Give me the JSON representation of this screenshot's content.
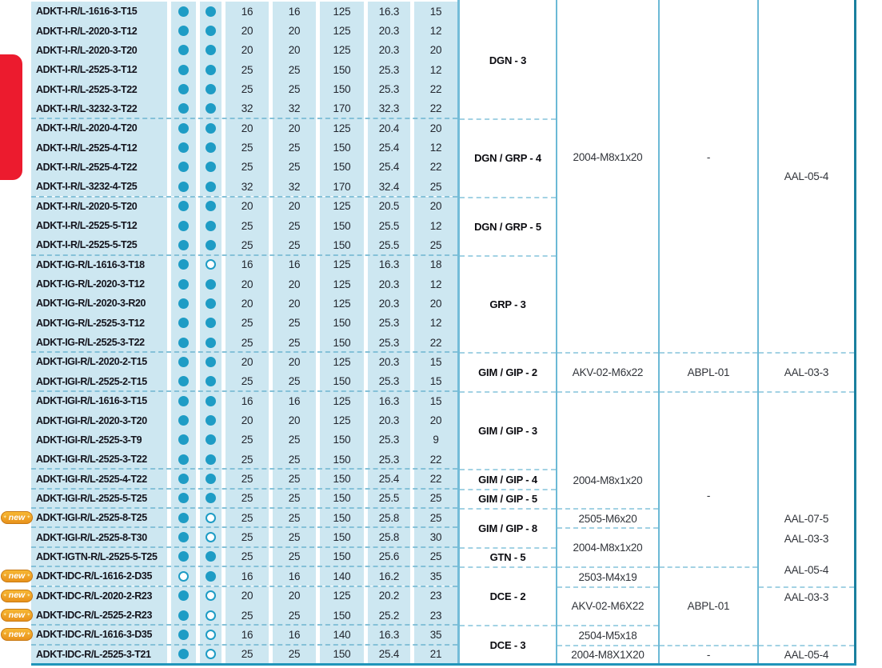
{
  "palette": {
    "dot_teal": "#1E9CC5",
    "row_background": "#CDE7F1",
    "red_tab": "#EC1B2E",
    "badge_orange": "#F0A31F",
    "table_border_teal": "#1A7F9E",
    "bottom_border_teal": "#2095BA"
  },
  "badge_label": "new",
  "rows": [
    {
      "name": "ADKT-I-R/L-1616-3-T15",
      "dots": [
        "filled",
        "filled"
      ],
      "values": [
        "16",
        "16",
        "125",
        "16.3",
        "15"
      ],
      "new": false,
      "sep": false
    },
    {
      "name": "ADKT-I-R/L-2020-3-T12",
      "dots": [
        "filled",
        "filled"
      ],
      "values": [
        "20",
        "20",
        "125",
        "20.3",
        "12"
      ],
      "new": false,
      "sep": false
    },
    {
      "name": "ADKT-I-R/L-2020-3-T20",
      "dots": [
        "filled",
        "filled"
      ],
      "values": [
        "20",
        "20",
        "125",
        "20.3",
        "20"
      ],
      "new": false,
      "sep": false
    },
    {
      "name": "ADKT-I-R/L-2525-3-T12",
      "dots": [
        "filled",
        "filled"
      ],
      "values": [
        "25",
        "25",
        "150",
        "25.3",
        "12"
      ],
      "new": false,
      "sep": false
    },
    {
      "name": "ADKT-I-R/L-2525-3-T22",
      "dots": [
        "filled",
        "filled"
      ],
      "values": [
        "25",
        "25",
        "150",
        "25.3",
        "22"
      ],
      "new": false,
      "sep": false
    },
    {
      "name": "ADKT-I-R/L-3232-3-T22",
      "dots": [
        "filled",
        "filled"
      ],
      "values": [
        "32",
        "32",
        "170",
        "32.3",
        "22"
      ],
      "new": false,
      "sep": false
    },
    {
      "name": "ADKT-I-R/L-2020-4-T20",
      "dots": [
        "filled",
        "filled"
      ],
      "values": [
        "20",
        "20",
        "125",
        "20.4",
        "20"
      ],
      "new": false,
      "sep": true
    },
    {
      "name": "ADKT-I-R/L-2525-4-T12",
      "dots": [
        "filled",
        "filled"
      ],
      "values": [
        "25",
        "25",
        "150",
        "25.4",
        "12"
      ],
      "new": false,
      "sep": false
    },
    {
      "name": "ADKT-I-R/L-2525-4-T22",
      "dots": [
        "filled",
        "filled"
      ],
      "values": [
        "25",
        "25",
        "150",
        "25.4",
        "22"
      ],
      "new": false,
      "sep": false
    },
    {
      "name": "ADKT-I-R/L-3232-4-T25",
      "dots": [
        "filled",
        "filled"
      ],
      "values": [
        "32",
        "32",
        "170",
        "32.4",
        "25"
      ],
      "new": false,
      "sep": false
    },
    {
      "name": "ADKT-I-R/L-2020-5-T20",
      "dots": [
        "filled",
        "filled"
      ],
      "values": [
        "20",
        "20",
        "125",
        "20.5",
        "20"
      ],
      "new": false,
      "sep": true
    },
    {
      "name": "ADKT-I-R/L-2525-5-T12",
      "dots": [
        "filled",
        "filled"
      ],
      "values": [
        "25",
        "25",
        "150",
        "25.5",
        "12"
      ],
      "new": false,
      "sep": false
    },
    {
      "name": "ADKT-I-R/L-2525-5-T25",
      "dots": [
        "filled",
        "filled"
      ],
      "values": [
        "25",
        "25",
        "150",
        "25.5",
        "25"
      ],
      "new": false,
      "sep": false
    },
    {
      "name": "ADKT-IG-R/L-1616-3-T18",
      "dots": [
        "filled",
        "open"
      ],
      "values": [
        "16",
        "16",
        "125",
        "16.3",
        "18"
      ],
      "new": false,
      "sep": true
    },
    {
      "name": "ADKT-IG-R/L-2020-3-T12",
      "dots": [
        "filled",
        "filled"
      ],
      "values": [
        "20",
        "20",
        "125",
        "20.3",
        "12"
      ],
      "new": false,
      "sep": false
    },
    {
      "name": "ADKT-IG-R/L-2020-3-R20",
      "dots": [
        "filled",
        "filled"
      ],
      "values": [
        "20",
        "20",
        "125",
        "20.3",
        "20"
      ],
      "new": false,
      "sep": false
    },
    {
      "name": "ADKT-IG-R/L-2525-3-T12",
      "dots": [
        "filled",
        "filled"
      ],
      "values": [
        "25",
        "25",
        "150",
        "25.3",
        "12"
      ],
      "new": false,
      "sep": false
    },
    {
      "name": "ADKT-IG-R/L-2525-3-T22",
      "dots": [
        "filled",
        "filled"
      ],
      "values": [
        "25",
        "25",
        "150",
        "25.3",
        "22"
      ],
      "new": false,
      "sep": false
    },
    {
      "name": "ADKT-IGI-R/L-2020-2-T15",
      "dots": [
        "filled",
        "filled"
      ],
      "values": [
        "20",
        "20",
        "125",
        "20.3",
        "15"
      ],
      "new": false,
      "sep": true
    },
    {
      "name": "ADKT-IGI-R/L-2525-2-T15",
      "dots": [
        "filled",
        "filled"
      ],
      "values": [
        "25",
        "25",
        "150",
        "25.3",
        "15"
      ],
      "new": false,
      "sep": false
    },
    {
      "name": "ADKT-IGI-R/L-1616-3-T15",
      "dots": [
        "filled",
        "filled"
      ],
      "values": [
        "16",
        "16",
        "125",
        "16.3",
        "15"
      ],
      "new": false,
      "sep": true
    },
    {
      "name": "ADKT-IGI-R/L-2020-3-T20",
      "dots": [
        "filled",
        "filled"
      ],
      "values": [
        "20",
        "20",
        "125",
        "20.3",
        "20"
      ],
      "new": false,
      "sep": false
    },
    {
      "name": "ADKT-IGI-R/L-2525-3-T9",
      "dots": [
        "filled",
        "filled"
      ],
      "values": [
        "25",
        "25",
        "150",
        "25.3",
        "9"
      ],
      "new": false,
      "sep": false
    },
    {
      "name": "ADKT-IGI-R/L-2525-3-T22",
      "dots": [
        "filled",
        "filled"
      ],
      "values": [
        "25",
        "25",
        "150",
        "25.3",
        "22"
      ],
      "new": false,
      "sep": false
    },
    {
      "name": "ADKT-IGI-R/L-2525-4-T22",
      "dots": [
        "filled",
        "filled"
      ],
      "values": [
        "25",
        "25",
        "150",
        "25.4",
        "22"
      ],
      "new": false,
      "sep": true
    },
    {
      "name": "ADKT-IGI-R/L-2525-5-T25",
      "dots": [
        "filled",
        "filled"
      ],
      "values": [
        "25",
        "25",
        "150",
        "25.5",
        "25"
      ],
      "new": false,
      "sep": true
    },
    {
      "name": "ADKT-IGI-R/L-2525-8-T25",
      "dots": [
        "filled",
        "open"
      ],
      "values": [
        "25",
        "25",
        "150",
        "25.8",
        "25"
      ],
      "new": true,
      "sep": true
    },
    {
      "name": "ADKT-IGI-R/L-2525-8-T30",
      "dots": [
        "filled",
        "open"
      ],
      "values": [
        "25",
        "25",
        "150",
        "25.8",
        "30"
      ],
      "new": false,
      "sep": true
    },
    {
      "name": "ADKT-IGTN-R/L-2525-5-T25",
      "dots": [
        "filled",
        "filled"
      ],
      "values": [
        "25",
        "25",
        "150",
        "25.6",
        "25"
      ],
      "new": false,
      "sep": true
    },
    {
      "name": "ADKT-IDC-R/L-1616-2-D35",
      "dots": [
        "open",
        "filled"
      ],
      "values": [
        "16",
        "16",
        "140",
        "16.2",
        "35"
      ],
      "new": true,
      "sep": true
    },
    {
      "name": "ADKT-IDC-R/L-2020-2-R23",
      "dots": [
        "filled",
        "open"
      ],
      "values": [
        "20",
        "20",
        "125",
        "20.2",
        "23"
      ],
      "new": true,
      "sep": true
    },
    {
      "name": "ADKT-IDC-R/L-2525-2-R23",
      "dots": [
        "filled",
        "open"
      ],
      "values": [
        "25",
        "25",
        "150",
        "25.2",
        "23"
      ],
      "new": true,
      "sep": false
    },
    {
      "name": "ADKT-IDC-R/L-1616-3-D35",
      "dots": [
        "filled",
        "open"
      ],
      "values": [
        "16",
        "16",
        "140",
        "16.3",
        "35"
      ],
      "new": true,
      "sep": true
    },
    {
      "name": "ADKT-IDC-R/L-2525-3-T21",
      "dots": [
        "filled",
        "open"
      ],
      "values": [
        "25",
        "25",
        "150",
        "25.4",
        "21"
      ],
      "new": false,
      "sep": true
    }
  ],
  "group_column": [
    {
      "label": "DGN - 3",
      "row_start": 1,
      "row_end": 6
    },
    {
      "label": "DGN / GRP - 4",
      "row_start": 7,
      "row_end": 10
    },
    {
      "label": "DGN / GRP - 5",
      "row_start": 11,
      "row_end": 13
    },
    {
      "label": "GRP - 3",
      "row_start": 14,
      "row_end": 18
    },
    {
      "label": "GIM / GIP - 2",
      "row_start": 19,
      "row_end": 20
    },
    {
      "label": "GIM / GIP - 3",
      "row_start": 21,
      "row_end": 24
    },
    {
      "label": "GIM / GIP - 4",
      "row_start": 25,
      "row_end": 25
    },
    {
      "label": "GIM / GIP - 5",
      "row_start": 26,
      "row_end": 26
    },
    {
      "label": "GIM / GIP - 8",
      "row_start": 27,
      "row_end": 28
    },
    {
      "label": "GTN - 5",
      "row_start": 29,
      "row_end": 29
    },
    {
      "label": "DCE - 2",
      "row_start": 30,
      "row_end": 32
    },
    {
      "label": "DCE - 3",
      "row_start": 33,
      "row_end": 34
    }
  ],
  "screw_column": [
    {
      "label": "2004-M8x1x20",
      "row_start": 1,
      "row_end": 18,
      "text_row": 8.5
    },
    {
      "label": "AKV-02-M6x22",
      "row_start": 19,
      "row_end": 20
    },
    {
      "label": "2004-M8x1x20",
      "row_start": 21,
      "row_end": 26,
      "text_row": 25
    },
    {
      "label": "2505-M6x20",
      "row_start": 27,
      "row_end": 27
    },
    {
      "label": "2004-M8x1x20",
      "row_start": 28,
      "row_end": 29
    },
    {
      "label": "2503-M4x19",
      "row_start": 30,
      "row_end": 30
    },
    {
      "label": "AKV-02-M6X22",
      "row_start": 31,
      "row_end": 32
    },
    {
      "label": "2504-M5x18",
      "row_start": 33,
      "row_end": 33
    },
    {
      "label": "2004-M8X1X20",
      "row_start": 34,
      "row_end": 34
    }
  ],
  "key_column": [
    {
      "label": "-",
      "row_start": 1,
      "row_end": 18,
      "text_row": 8.5
    },
    {
      "label": "ABPL-01",
      "row_start": 19,
      "row_end": 20
    },
    {
      "label": "-",
      "row_start": 21,
      "row_end": 29,
      "text_row": 25.8
    },
    {
      "label": "ABPL-01",
      "row_start": 30,
      "row_end": 33
    },
    {
      "label": "-",
      "row_start": 34,
      "row_end": 34
    }
  ],
  "anvil_column": [
    {
      "label": "AAL-05-4",
      "row_start": 1,
      "row_end": 18,
      "text_row": 9.5
    },
    {
      "label": "AAL-03-3",
      "row_start": 19,
      "row_end": 20
    },
    {
      "labels": [
        {
          "text": "AAL-07-5",
          "text_row": 27
        },
        {
          "text": "AAL-03-3",
          "text_row": 28
        },
        {
          "text": "AAL-05-4",
          "text_row": 29.6
        }
      ],
      "row_start": 21,
      "row_end": 30
    },
    {
      "label": "AAL-03-3",
      "row_start": 31,
      "row_end": 33,
      "text_row": 31
    },
    {
      "label": "AAL-05-4",
      "row_start": 34,
      "row_end": 34
    }
  ]
}
